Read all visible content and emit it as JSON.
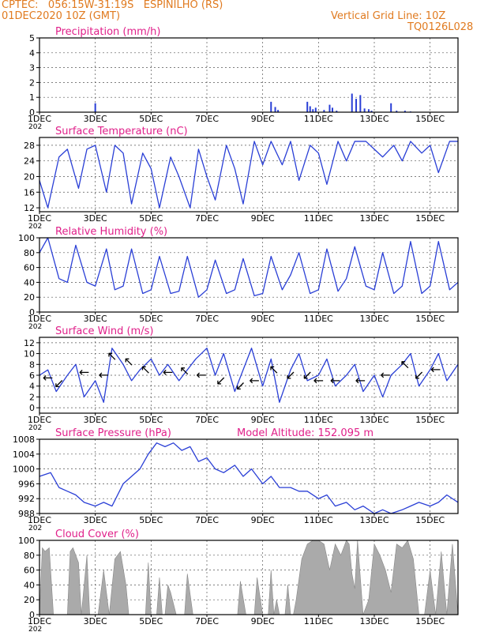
{
  "header": {
    "line1": "CPTEC:   056:15W-31:19S   ESPINILHO (RS)",
    "line2": "01DEC2020 10Z (GMT)",
    "grid_line": "Vertical Grid Line: 10Z",
    "code": "TQ0126L028"
  },
  "colors": {
    "header": "#e07a1f",
    "title": "#e0208a",
    "line": "#2a3fd6",
    "cloud": "#aaaaaa",
    "grid": "#555555"
  },
  "x_ticks": [
    "1DEC",
    "3DEC",
    "5DEC",
    "7DEC",
    "9DEC",
    "11DEC",
    "13DEC",
    "15DEC"
  ],
  "x_sub": "202",
  "panels": [
    {
      "title": "Precipitation (mm/h)",
      "yticks": [
        "0",
        "1",
        "2",
        "3",
        "4",
        "5"
      ],
      "ylim": [
        0,
        5
      ]
    },
    {
      "title": "Surface Temperature (nC)",
      "yticks": [
        "12",
        "16",
        "20",
        "24",
        "28"
      ],
      "ylim": [
        11,
        30
      ]
    },
    {
      "title": "Relative Humidity (%)",
      "yticks": [
        "0",
        "20",
        "40",
        "60",
        "80",
        "100"
      ],
      "ylim": [
        0,
        100
      ]
    },
    {
      "title": "Surface Wind (m/s)",
      "yticks": [
        "0",
        "2",
        "4",
        "6",
        "8",
        "10",
        "12"
      ],
      "ylim": [
        -1,
        13
      ]
    },
    {
      "title": "Surface Pressure (hPa)",
      "extra": "Model Altitude: 152.095 m",
      "yticks": [
        "988",
        "992",
        "996",
        "1000",
        "1004",
        "1008"
      ],
      "ylim": [
        988,
        1008
      ]
    },
    {
      "title": "Cloud Cover (%)",
      "yticks": [
        "0",
        "20",
        "40",
        "60",
        "80",
        "100"
      ],
      "ylim": [
        0,
        100
      ]
    }
  ],
  "chart_data": [
    {
      "type": "bar",
      "title": "Precipitation (mm/h)",
      "x_unit": "day of December 2020",
      "ylim": [
        0,
        5
      ],
      "bars": [
        [
          3.0,
          0.6
        ],
        [
          9.3,
          0.7
        ],
        [
          9.45,
          0.35
        ],
        [
          9.55,
          0.15
        ],
        [
          10.6,
          0.7
        ],
        [
          10.7,
          0.4
        ],
        [
          10.8,
          0.2
        ],
        [
          10.9,
          0.3
        ],
        [
          11.2,
          0.15
        ],
        [
          11.4,
          0.5
        ],
        [
          11.5,
          0.3
        ],
        [
          11.65,
          0.1
        ],
        [
          12.2,
          1.25
        ],
        [
          12.35,
          0.9
        ],
        [
          12.5,
          1.15
        ],
        [
          12.65,
          0.25
        ],
        [
          12.8,
          0.2
        ],
        [
          12.9,
          0.1
        ],
        [
          13.6,
          0.6
        ],
        [
          13.8,
          0.1
        ],
        [
          14.1,
          0.1
        ],
        [
          14.3,
          0.05
        ]
      ]
    },
    {
      "type": "line",
      "title": "Surface Temperature (nC)",
      "x_unit": "day of December 2020",
      "ylim": [
        11,
        30
      ],
      "x": [
        1.0,
        1.3,
        1.7,
        2.0,
        2.4,
        2.7,
        3.0,
        3.4,
        3.7,
        4.0,
        4.3,
        4.7,
        5.0,
        5.3,
        5.7,
        6.0,
        6.4,
        6.7,
        7.0,
        7.3,
        7.7,
        8.0,
        8.3,
        8.7,
        9.0,
        9.3,
        9.7,
        10.0,
        10.3,
        10.7,
        11.0,
        11.3,
        11.7,
        12.0,
        12.3,
        12.7,
        13.0,
        13.3,
        13.7,
        14.0,
        14.3,
        14.7,
        15.0,
        15.3,
        15.7,
        16.0
      ],
      "y": [
        19,
        12,
        25,
        27,
        17,
        27,
        28,
        16,
        28,
        26,
        13,
        26,
        22,
        12,
        25,
        20,
        12,
        27,
        20,
        14,
        28,
        22,
        13,
        29,
        23,
        29,
        23,
        29,
        19,
        28,
        26,
        18,
        29,
        24,
        29,
        29,
        27,
        25,
        28,
        24,
        29,
        26,
        28,
        21,
        29,
        29
      ]
    },
    {
      "type": "line",
      "title": "Relative Humidity (%)",
      "x_unit": "day of December 2020",
      "ylim": [
        0,
        100
      ],
      "x": [
        1.0,
        1.3,
        1.7,
        2.0,
        2.3,
        2.7,
        3.0,
        3.4,
        3.7,
        4.0,
        4.3,
        4.7,
        5.0,
        5.3,
        5.7,
        6.0,
        6.3,
        6.7,
        7.0,
        7.3,
        7.7,
        8.0,
        8.3,
        8.7,
        9.0,
        9.3,
        9.7,
        10.0,
        10.3,
        10.7,
        11.0,
        11.3,
        11.7,
        12.0,
        12.3,
        12.7,
        13.0,
        13.3,
        13.7,
        14.0,
        14.3,
        14.7,
        15.0,
        15.3,
        15.7,
        16.0
      ],
      "y": [
        80,
        100,
        45,
        40,
        90,
        40,
        35,
        85,
        30,
        35,
        85,
        25,
        30,
        75,
        25,
        28,
        75,
        20,
        30,
        70,
        25,
        30,
        72,
        22,
        25,
        75,
        30,
        50,
        80,
        25,
        30,
        85,
        28,
        45,
        88,
        35,
        30,
        80,
        25,
        35,
        95,
        25,
        35,
        95,
        30,
        40
      ]
    },
    {
      "type": "line",
      "title": "Surface Wind (m/s)",
      "x_unit": "day of December 2020",
      "ylim": [
        -1,
        13
      ],
      "x": [
        1.0,
        1.3,
        1.6,
        2.0,
        2.3,
        2.6,
        3.0,
        3.3,
        3.6,
        4.0,
        4.3,
        4.6,
        5.0,
        5.3,
        5.6,
        6.0,
        6.3,
        6.6,
        7.0,
        7.3,
        7.6,
        8.0,
        8.3,
        8.6,
        9.0,
        9.3,
        9.6,
        10.0,
        10.3,
        10.6,
        11.0,
        11.3,
        11.6,
        12.0,
        12.3,
        12.6,
        13.0,
        13.3,
        13.6,
        14.0,
        14.3,
        14.6,
        15.0,
        15.3,
        15.6,
        16.0
      ],
      "y": [
        6,
        7,
        3,
        6,
        8,
        2,
        5,
        1,
        11,
        8,
        5,
        7,
        9,
        6,
        8,
        5,
        7,
        9,
        11,
        6,
        10,
        3,
        7,
        11,
        4,
        9,
        1,
        7,
        10,
        5,
        6,
        9,
        4,
        6,
        8,
        3,
        6,
        2,
        6,
        8,
        10,
        4,
        7,
        10,
        5,
        8
      ],
      "arrows": [
        {
          "x": 1.3,
          "y": 5.5,
          "dir": "←"
        },
        {
          "x": 1.7,
          "y": 4.5,
          "dir": "↙"
        },
        {
          "x": 2.6,
          "y": 6.5,
          "dir": "←"
        },
        {
          "x": 3.3,
          "y": 6,
          "dir": "←"
        },
        {
          "x": 3.6,
          "y": 9.5,
          "dir": "↖"
        },
        {
          "x": 4.2,
          "y": 8.5,
          "dir": "↖"
        },
        {
          "x": 4.8,
          "y": 7,
          "dir": "↖"
        },
        {
          "x": 5.6,
          "y": 6.5,
          "dir": "←"
        },
        {
          "x": 6.2,
          "y": 6.8,
          "dir": "↖"
        },
        {
          "x": 6.8,
          "y": 6,
          "dir": "←"
        },
        {
          "x": 7.5,
          "y": 5,
          "dir": "↙"
        },
        {
          "x": 8.2,
          "y": 4,
          "dir": "↙"
        },
        {
          "x": 8.7,
          "y": 5,
          "dir": "←"
        },
        {
          "x": 9.4,
          "y": 7,
          "dir": "↖"
        },
        {
          "x": 10.0,
          "y": 6,
          "dir": "↙"
        },
        {
          "x": 10.6,
          "y": 6,
          "dir": "↙"
        },
        {
          "x": 11.0,
          "y": 5,
          "dir": "←"
        },
        {
          "x": 11.6,
          "y": 5,
          "dir": "←"
        },
        {
          "x": 12.5,
          "y": 5,
          "dir": "←"
        },
        {
          "x": 13.4,
          "y": 6,
          "dir": "←"
        },
        {
          "x": 14.1,
          "y": 8,
          "dir": "↖"
        },
        {
          "x": 14.6,
          "y": 6,
          "dir": "↙"
        },
        {
          "x": 15.2,
          "y": 7,
          "dir": "←"
        }
      ]
    },
    {
      "type": "line",
      "title": "Surface Pressure (hPa)",
      "x_unit": "day of December 2020",
      "ylim": [
        988,
        1008
      ],
      "x": [
        1.0,
        1.4,
        1.7,
        2.0,
        2.3,
        2.6,
        3.0,
        3.3,
        3.6,
        4.0,
        4.3,
        4.6,
        4.9,
        5.2,
        5.5,
        5.8,
        6.1,
        6.4,
        6.7,
        7.0,
        7.3,
        7.6,
        8.0,
        8.3,
        8.6,
        9.0,
        9.3,
        9.6,
        10.0,
        10.3,
        10.6,
        11.0,
        11.3,
        11.6,
        12.0,
        12.3,
        12.6,
        13.0,
        13.3,
        13.6,
        14.0,
        14.3,
        14.6,
        15.0,
        15.3,
        15.6,
        16.0
      ],
      "y": [
        998,
        999,
        995,
        994,
        993,
        991,
        990,
        991,
        990,
        996,
        998,
        1000,
        1004,
        1007,
        1006,
        1007,
        1005,
        1006,
        1002,
        1003,
        1000,
        999,
        1001,
        998,
        1000,
        996,
        998,
        995,
        995,
        994,
        994,
        992,
        993,
        990,
        991,
        989,
        990,
        988,
        989,
        988,
        989,
        990,
        991,
        990,
        991,
        993,
        991
      ]
    },
    {
      "type": "area",
      "title": "Cloud Cover (%)",
      "x_unit": "day of December 2020",
      "ylim": [
        0,
        100
      ],
      "x": [
        1.0,
        1.1,
        1.2,
        1.35,
        1.5,
        1.6,
        1.8,
        2.0,
        2.1,
        2.2,
        2.4,
        2.5,
        2.7,
        2.8,
        3.0,
        3.1,
        3.3,
        3.5,
        3.7,
        3.9,
        4.1,
        4.2,
        4.4,
        4.6,
        4.8,
        4.9,
        5.0,
        5.1,
        5.2,
        5.3,
        5.4,
        5.5,
        5.6,
        5.7,
        5.9,
        6.0,
        6.1,
        6.2,
        6.3,
        6.5,
        6.8,
        6.9,
        7.0,
        7.1,
        7.2,
        7.5,
        7.6,
        7.8,
        8.0,
        8.1,
        8.2,
        8.4,
        8.5,
        8.7,
        8.8,
        9.0,
        9.1,
        9.2,
        9.3,
        9.4,
        9.5,
        9.6,
        9.8,
        9.9,
        10.0,
        10.1,
        10.2,
        10.4,
        10.6,
        10.8,
        11.0,
        11.2,
        11.4,
        11.6,
        11.8,
        12.0,
        12.1,
        12.2,
        12.3,
        12.4,
        12.6,
        12.8,
        13.0,
        13.2,
        13.4,
        13.6,
        13.8,
        14.0,
        14.2,
        14.4,
        14.6,
        14.8,
        15.0,
        15.2,
        15.4,
        15.6,
        15.8,
        16.0
      ],
      "y": [
        0,
        90,
        85,
        90,
        0,
        0,
        0,
        0,
        85,
        90,
        70,
        0,
        80,
        0,
        0,
        0,
        60,
        0,
        75,
        85,
        40,
        0,
        0,
        0,
        0,
        70,
        0,
        0,
        0,
        50,
        0,
        0,
        40,
        30,
        0,
        0,
        0,
        0,
        55,
        0,
        0,
        0,
        0,
        0,
        0,
        0,
        0,
        0,
        0,
        0,
        45,
        0,
        0,
        0,
        50,
        0,
        0,
        0,
        60,
        0,
        20,
        0,
        0,
        40,
        0,
        0,
        20,
        75,
        95,
        100,
        100,
        95,
        60,
        95,
        80,
        100,
        95,
        55,
        35,
        100,
        0,
        20,
        95,
        80,
        60,
        30,
        95,
        90,
        100,
        75,
        0,
        0,
        60,
        0,
        85,
        0,
        95,
        0
      ]
    }
  ]
}
